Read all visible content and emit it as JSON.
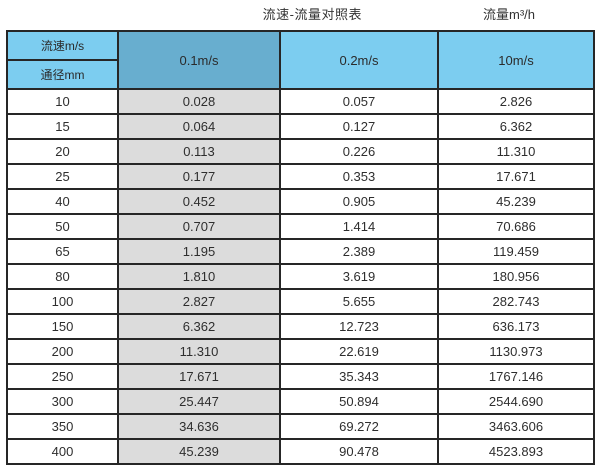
{
  "titles": {
    "main": "流速-流量对照表",
    "unit": "流量m³/h"
  },
  "header": {
    "velocity_label": "流速m/s",
    "diameter_label": "通径mm",
    "columns": [
      "0.1m/s",
      "0.2m/s",
      "10m/s"
    ]
  },
  "colors": {
    "header_blue": "#7ccdf0",
    "header_dark_blue": "#68aecf",
    "gray_column": "#dcdcdc",
    "border": "#262626",
    "text": "#2e2e2e"
  },
  "chart_data": {
    "type": "table",
    "title": "流速-流量对照表",
    "unit_label": "流量m³/h",
    "corner_labels": [
      "流速m/s",
      "通径mm"
    ],
    "columns": [
      "通径mm",
      "0.1m/s",
      "0.2m/s",
      "10m/s"
    ],
    "rows": [
      [
        "10",
        "0.028",
        "0.057",
        "2.826"
      ],
      [
        "15",
        "0.064",
        "0.127",
        "6.362"
      ],
      [
        "20",
        "0.113",
        "0.226",
        "11.310"
      ],
      [
        "25",
        "0.177",
        "0.353",
        "17.671"
      ],
      [
        "40",
        "0.452",
        "0.905",
        "45.239"
      ],
      [
        "50",
        "0.707",
        "1.414",
        "70.686"
      ],
      [
        "65",
        "1.195",
        "2.389",
        "119.459"
      ],
      [
        "80",
        "1.810",
        "3.619",
        "180.956"
      ],
      [
        "100",
        "2.827",
        "5.655",
        "282.743"
      ],
      [
        "150",
        "6.362",
        "12.723",
        "636.173"
      ],
      [
        "200",
        "11.310",
        "22.619",
        "1130.973"
      ],
      [
        "250",
        "17.671",
        "35.343",
        "1767.146"
      ],
      [
        "300",
        "25.447",
        "50.894",
        "2544.690"
      ],
      [
        "350",
        "34.636",
        "69.272",
        "3463.606"
      ],
      [
        "400",
        "45.239",
        "90.478",
        "4523.893"
      ]
    ]
  }
}
